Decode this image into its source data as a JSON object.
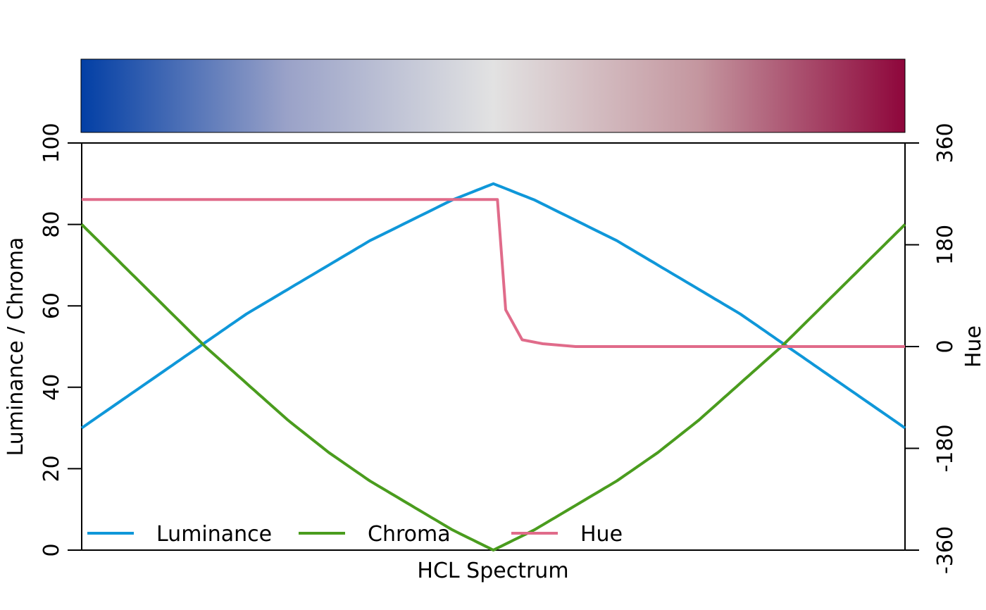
{
  "chart_data": {
    "type": "line",
    "xlabel": "HCL Spectrum",
    "ylabel_left": "Luminance / Chroma",
    "ylabel_right": "Hue",
    "ylim_left": [
      0,
      100
    ],
    "ylim_right": [
      -360,
      360
    ],
    "yticks_left": [
      "0",
      "20",
      "40",
      "60",
      "80",
      "100"
    ],
    "yticks_right": [
      "-360",
      "-180",
      "0",
      "180",
      "360"
    ],
    "x": [
      0,
      0.05,
      0.1,
      0.15,
      0.2,
      0.25,
      0.3,
      0.35,
      0.4,
      0.45,
      0.5,
      0.55,
      0.6,
      0.65,
      0.7,
      0.75,
      0.8,
      0.85,
      0.9,
      0.95,
      1.0
    ],
    "series": [
      {
        "name": "Luminance",
        "color": "#0f97d9",
        "axis": "left",
        "values": [
          30,
          37,
          44,
          51,
          58,
          64,
          70,
          76,
          81,
          86,
          90,
          86,
          81,
          76,
          70,
          64,
          58,
          51,
          44,
          37,
          30
        ]
      },
      {
        "name": "Chroma",
        "color": "#4a9c1e",
        "axis": "left",
        "values": [
          80,
          70,
          60,
          50,
          41,
          32,
          24,
          17,
          11,
          5,
          0,
          5,
          11,
          17,
          24,
          32,
          41,
          50,
          60,
          70,
          80
        ]
      },
      {
        "name": "Hue",
        "color": "#e06b8a",
        "axis": "right",
        "x": [
          0,
          0.25,
          0.5,
          0.505,
          0.515,
          0.535,
          0.56,
          0.6,
          0.7,
          0.8,
          0.9,
          1.0
        ],
        "values": [
          260,
          260,
          260,
          260,
          65,
          12,
          5,
          0,
          0,
          0,
          0,
          0
        ]
      }
    ],
    "legend": {
      "placement": "bottom-left",
      "entries": [
        "Luminance",
        "Chroma",
        "Hue"
      ]
    },
    "color_strip": {
      "colors": [
        "#023fa5",
        "#9aa2c8",
        "#e2e2e2",
        "#c4969f",
        "#8e063b"
      ]
    },
    "grid": false
  }
}
